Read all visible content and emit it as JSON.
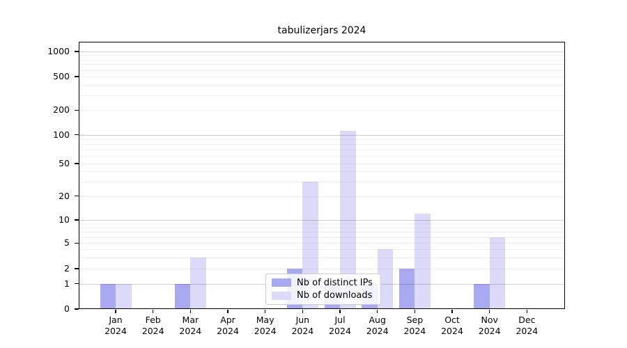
{
  "chart_data": {
    "type": "bar",
    "title": "tabulizerjars 2024",
    "categories": [
      "Jan",
      "Feb",
      "Mar",
      "Apr",
      "May",
      "Jun",
      "Jul",
      "Aug",
      "Sep",
      "Oct",
      "Nov",
      "Dec"
    ],
    "year": "2024",
    "series": [
      {
        "name": "Nb of distinct IPs",
        "color": "#a9a9f2",
        "values": [
          1,
          0,
          1,
          0,
          0,
          2,
          1,
          1,
          2,
          0,
          1,
          0
        ]
      },
      {
        "name": "Nb of downloads",
        "color": "#dbdbf9",
        "values": [
          1,
          0,
          3,
          0,
          0,
          30,
          112,
          4,
          12,
          0,
          6,
          0
        ]
      }
    ],
    "yticks": [
      0,
      1,
      2,
      5,
      10,
      20,
      50,
      100,
      200,
      500,
      1000
    ],
    "ylim": [
      0,
      1000
    ],
    "yscale": "log-like with compressed region near zero",
    "xlabel": "",
    "ylabel": "",
    "grid": "horizontal: major lines at 1,10,100,1000; faint log minor lines",
    "legend_position": "inside-bottom-center"
  },
  "colors": {
    "bar_dark": "#a9a9f2",
    "bar_light": "#dbdbf9",
    "axis": "#000000",
    "grid_major": "#cdcdcd",
    "grid_minor": "#efefef",
    "legend_border": "#cccccc"
  }
}
